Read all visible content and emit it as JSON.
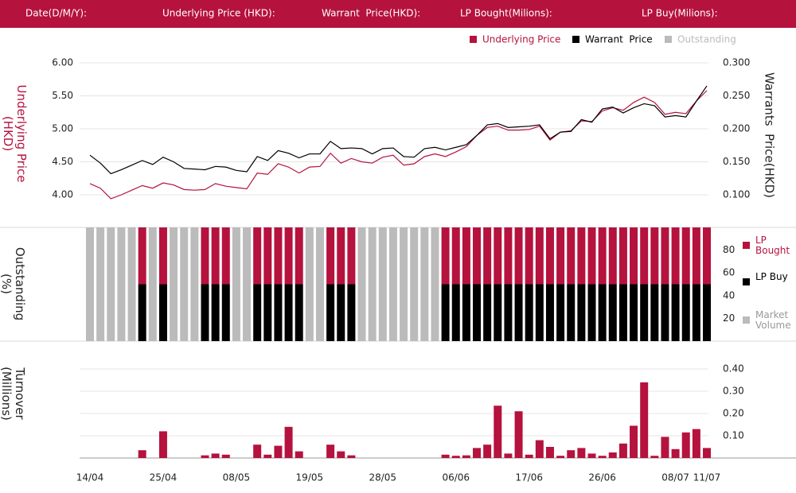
{
  "header": {
    "fields": [
      "Date(D/M/Y):",
      "Underlying Price (HKD):",
      "Warrant  Price(HKD):",
      "LP Bought(Milions):",
      "LP Buy(Milions):"
    ]
  },
  "chart_data": [
    {
      "type": "line",
      "y_label": "Underlying Price (HKD)",
      "y2_label": "Warrants  Price(HKD)",
      "ylim": [
        3.5,
        6.0
      ],
      "yticks": [
        {
          "value": 4,
          "label": "4.00"
        },
        {
          "value": 4.5,
          "label": "4.50"
        },
        {
          "value": 5,
          "label": "5.00"
        },
        {
          "value": 5.5,
          "label": "5.50"
        },
        {
          "value": 6,
          "label": "6.00"
        }
      ],
      "y2lim": [
        0.05,
        0.3
      ],
      "y2ticks": [
        {
          "value": 0.1,
          "label": "0.100"
        },
        {
          "value": 0.15,
          "label": "0.150"
        },
        {
          "value": 0.2,
          "label": "0.200"
        },
        {
          "value": 0.25,
          "label": "0.250"
        },
        {
          "value": 0.3,
          "label": "0.300"
        }
      ],
      "grid": true,
      "series": [
        {
          "name": "Underlying Price",
          "color": "#b5123e",
          "values": [
            4.17,
            4.1,
            3.94,
            4.0,
            4.07,
            4.14,
            4.1,
            4.18,
            4.15,
            4.08,
            4.07,
            4.08,
            4.17,
            4.13,
            4.11,
            4.09,
            4.33,
            4.31,
            4.47,
            4.42,
            4.33,
            4.42,
            4.43,
            4.63,
            4.48,
            4.55,
            4.5,
            4.48,
            4.57,
            4.6,
            4.45,
            4.47,
            4.58,
            4.62,
            4.58,
            4.65,
            4.73,
            4.9,
            5.02,
            5.04,
            4.98,
            4.98,
            4.99,
            5.04,
            4.83,
            4.95,
            4.97,
            5.12,
            5.11,
            5.27,
            5.32,
            5.28,
            5.4,
            5.48,
            5.4,
            5.22,
            5.25,
            5.23,
            5.42,
            5.58
          ]
        },
        {
          "name": "Warrant  Price",
          "color": "#000000",
          "axis": "y2",
          "values": [
            0.16,
            0.148,
            0.132,
            0.138,
            0.145,
            0.152,
            0.146,
            0.157,
            0.15,
            0.14,
            0.139,
            0.138,
            0.143,
            0.142,
            0.137,
            0.135,
            0.158,
            0.152,
            0.167,
            0.163,
            0.156,
            0.162,
            0.162,
            0.181,
            0.17,
            0.171,
            0.17,
            0.162,
            0.17,
            0.171,
            0.158,
            0.157,
            0.17,
            0.172,
            0.168,
            0.172,
            0.176,
            0.19,
            0.206,
            0.208,
            0.202,
            0.203,
            0.204,
            0.206,
            0.185,
            0.195,
            0.196,
            0.214,
            0.21,
            0.23,
            0.233,
            0.224,
            0.232,
            0.238,
            0.235,
            0.218,
            0.22,
            0.218,
            0.242,
            0.265
          ]
        }
      ]
    },
    {
      "type": "bar",
      "stacked": true,
      "name": "Outstanding",
      "color": "#bbbbbb",
      "y_label": "Outstanding (%)",
      "ylim": [
        0,
        100
      ],
      "yticks": [
        20,
        40,
        60,
        80
      ],
      "grid": false,
      "series": [
        {
          "name": "LP Bought",
          "color": "#b5123e",
          "values": [
            0,
            0,
            0,
            0,
            0,
            50,
            0,
            50,
            0,
            0,
            0,
            50,
            50,
            50,
            0,
            0,
            50,
            50,
            50,
            50,
            50,
            0,
            0,
            50,
            50,
            50,
            0,
            0,
            0,
            0,
            0,
            0,
            0,
            0,
            50,
            50,
            50,
            50,
            50,
            50,
            50,
            50,
            50,
            50,
            50,
            50,
            50,
            50,
            50,
            50,
            50,
            50,
            50,
            50,
            50,
            50,
            50,
            50,
            50,
            50
          ]
        },
        {
          "name": "LP Buy",
          "color": "#000000",
          "values": [
            0,
            0,
            0,
            0,
            0,
            50,
            0,
            50,
            0,
            0,
            0,
            50,
            50,
            50,
            0,
            0,
            50,
            50,
            50,
            50,
            50,
            0,
            0,
            50,
            50,
            50,
            0,
            0,
            0,
            0,
            0,
            0,
            0,
            0,
            50,
            50,
            50,
            50,
            50,
            50,
            50,
            50,
            50,
            50,
            50,
            50,
            50,
            50,
            50,
            50,
            50,
            50,
            50,
            50,
            50,
            50,
            50,
            50,
            50,
            50
          ]
        },
        {
          "name": "Market Volume",
          "color": "#bbbbbb",
          "values": [
            100,
            100,
            100,
            100,
            100,
            0,
            100,
            0,
            100,
            100,
            100,
            0,
            0,
            0,
            100,
            100,
            0,
            0,
            0,
            0,
            0,
            100,
            100,
            0,
            0,
            0,
            100,
            100,
            100,
            100,
            100,
            100,
            100,
            100,
            0,
            0,
            0,
            0,
            0,
            0,
            0,
            0,
            0,
            0,
            0,
            0,
            0,
            0,
            0,
            0,
            0,
            0,
            0,
            0,
            0,
            0,
            0,
            0,
            0,
            0
          ]
        }
      ]
    },
    {
      "type": "bar",
      "y_label": "Turnover (Millions)",
      "color": "#b5123e",
      "ylim": [
        0,
        0.5
      ],
      "yticks": [
        {
          "value": 0.1,
          "label": "0.10"
        },
        {
          "value": 0.2,
          "label": "0.20"
        },
        {
          "value": 0.3,
          "label": "0.30"
        },
        {
          "value": 0.4,
          "label": "0.40"
        }
      ],
      "grid": true,
      "categories": [
        "14/04",
        null,
        null,
        null,
        null,
        null,
        null,
        "25/04",
        null,
        null,
        null,
        null,
        null,
        null,
        "08/05",
        null,
        null,
        null,
        null,
        null,
        null,
        "19/05",
        null,
        null,
        null,
        null,
        null,
        null,
        "28/05",
        null,
        null,
        null,
        null,
        null,
        null,
        "06/06",
        null,
        null,
        null,
        null,
        null,
        null,
        "17/06",
        null,
        null,
        null,
        null,
        null,
        null,
        "26/06",
        null,
        null,
        null,
        null,
        null,
        null,
        "08/07",
        null,
        null,
        "11/07"
      ],
      "values": [
        0,
        0,
        0,
        0,
        0,
        0.035,
        0,
        0.12,
        0,
        0,
        0,
        0.012,
        0.02,
        0.015,
        0,
        0,
        0.06,
        0.015,
        0.055,
        0.14,
        0.03,
        0,
        0,
        0.06,
        0.03,
        0.012,
        0,
        0,
        0,
        0,
        0,
        0,
        0,
        0,
        0.015,
        0.01,
        0.012,
        0.045,
        0.06,
        0.235,
        0.02,
        0.21,
        0.015,
        0.08,
        0.05,
        0.01,
        0.035,
        0.045,
        0.02,
        0.01,
        0.025,
        0.065,
        0.145,
        0.34,
        0.01,
        0.095,
        0.04,
        0.115,
        0.13,
        0.045
      ]
    }
  ]
}
